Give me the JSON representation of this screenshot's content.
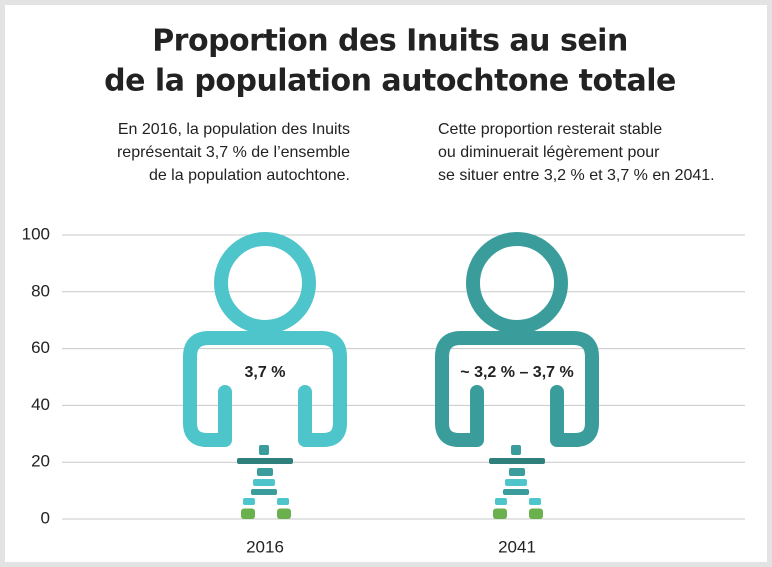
{
  "chart_data": {
    "type": "pictograph",
    "title": [
      "Proportion des Inuits au sein",
      "de la population autochtone totale"
    ],
    "annotations": [
      [
        "En 2016, la population des Inuits",
        "représentait 3,7 % de l’ensemble",
        "de la population autochtone."
      ],
      [
        "Cette proportion resterait stable",
        "ou diminuerait légèrement pour",
        "se situer entre 3,2 % et 3,7 % en 2041."
      ]
    ],
    "categories": [
      "2016",
      "2041"
    ],
    "values": [
      3.7,
      3.7
    ],
    "value_labels": [
      "3,7 %",
      "~ 3,2 % – 3,7 %"
    ],
    "colors": [
      "#4ec5ca",
      "#3a9d9b"
    ],
    "ylim": [
      0,
      100
    ],
    "yticks": [
      0,
      20,
      40,
      60,
      80,
      100
    ],
    "grid": true
  }
}
